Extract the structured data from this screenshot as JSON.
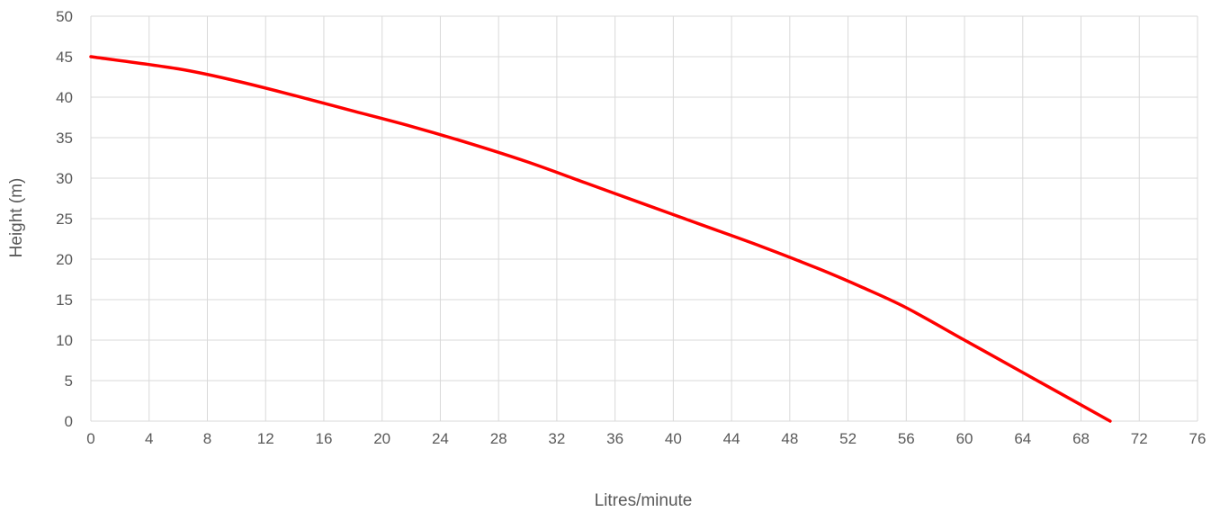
{
  "chart_data": {
    "type": "line",
    "title": "",
    "xlabel": "Litres/minute",
    "ylabel": "Height (m)",
    "xlim": [
      0,
      76
    ],
    "ylim": [
      0,
      50
    ],
    "x_ticks": [
      0,
      4,
      8,
      12,
      16,
      20,
      24,
      28,
      32,
      36,
      40,
      44,
      48,
      52,
      56,
      60,
      64,
      68,
      72,
      76
    ],
    "y_ticks": [
      0,
      5,
      10,
      15,
      20,
      25,
      30,
      35,
      40,
      45,
      50
    ],
    "grid": true,
    "legend": "none",
    "series": [
      {
        "color": "#ff0000",
        "x": [
          0,
          6,
          10,
          14,
          18,
          22,
          26,
          30,
          34,
          38,
          42,
          46,
          50,
          53,
          56,
          60,
          64,
          70
        ],
        "y": [
          45,
          43.5,
          42,
          40.2,
          38.3,
          36.4,
          34.3,
          32,
          29.4,
          26.8,
          24.2,
          21.6,
          18.8,
          16.5,
          14,
          10,
          6,
          0
        ]
      }
    ]
  }
}
